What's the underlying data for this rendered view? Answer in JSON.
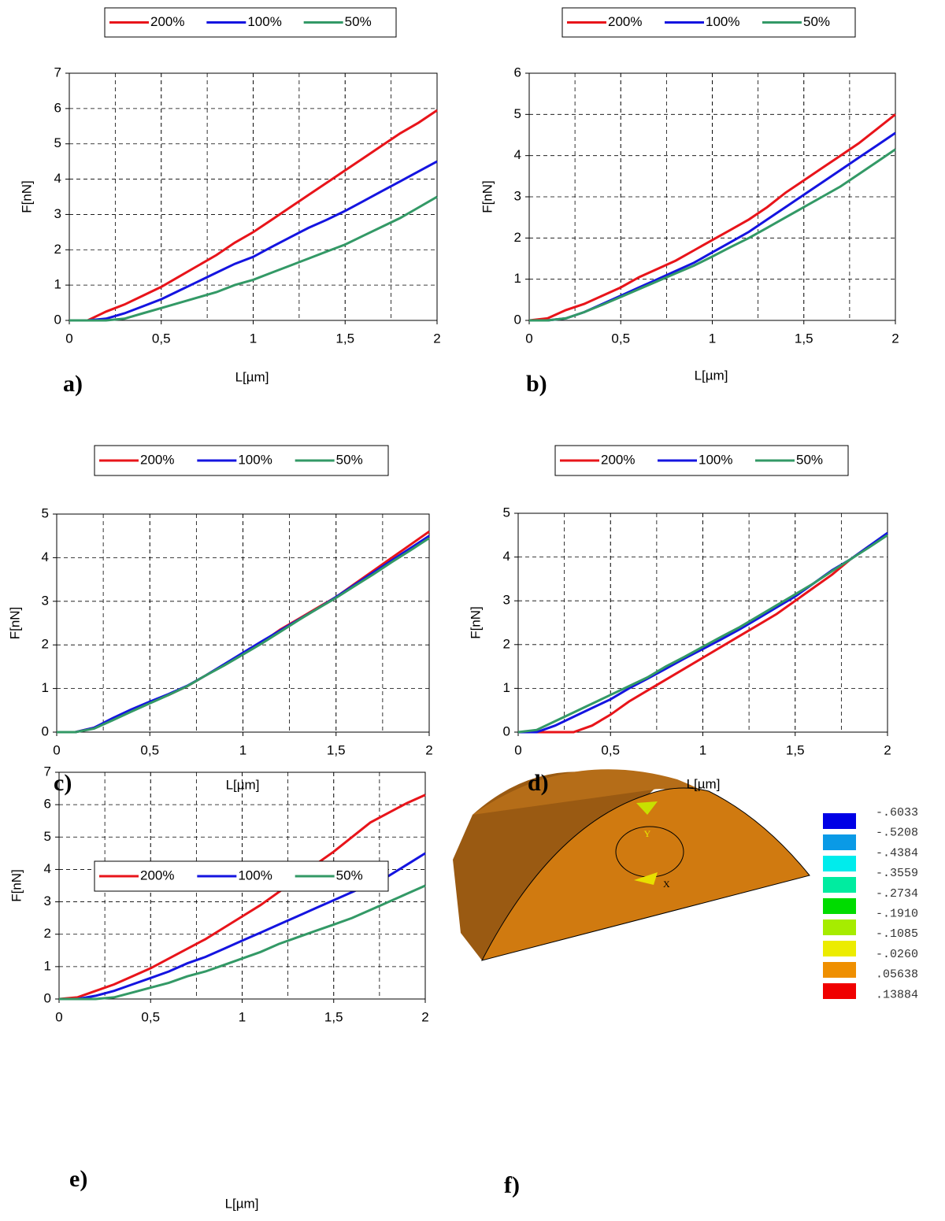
{
  "chart_data": [
    {
      "type": "line",
      "panel": "a)",
      "x_label": "L[µm]",
      "y_label": "F[nN]",
      "x": [
        0,
        0.1,
        0.2,
        0.3,
        0.4,
        0.5,
        0.6,
        0.7,
        0.8,
        0.9,
        1.0,
        1.1,
        1.2,
        1.3,
        1.4,
        1.5,
        1.6,
        1.7,
        1.8,
        1.9,
        2.0
      ],
      "series": [
        {
          "name": "200%",
          "color": "#e8141a",
          "values": [
            0,
            0,
            0.25,
            0.45,
            0.7,
            0.95,
            1.25,
            1.55,
            1.85,
            2.2,
            2.5,
            2.85,
            3.2,
            3.55,
            3.9,
            4.25,
            4.6,
            4.95,
            5.3,
            5.6,
            5.95
          ]
        },
        {
          "name": "100%",
          "color": "#1414e0",
          "values": [
            0,
            0,
            0.05,
            0.2,
            0.4,
            0.6,
            0.85,
            1.1,
            1.35,
            1.6,
            1.8,
            2.08,
            2.35,
            2.62,
            2.85,
            3.1,
            3.38,
            3.66,
            3.94,
            4.22,
            4.5
          ]
        },
        {
          "name": "50%",
          "color": "#339966",
          "values": [
            0,
            0,
            0,
            0.05,
            0.2,
            0.35,
            0.5,
            0.65,
            0.8,
            1.0,
            1.15,
            1.35,
            1.55,
            1.75,
            1.95,
            2.15,
            2.4,
            2.65,
            2.9,
            3.2,
            3.5
          ]
        }
      ],
      "xlim": [
        0,
        2
      ],
      "ylim": [
        0,
        7
      ],
      "xticks": [
        0,
        {
          "value": 0.5,
          "label": "0,5"
        },
        1,
        {
          "value": 1.5,
          "label": "1,5"
        },
        2
      ],
      "yticks": [
        0,
        1,
        2,
        3,
        4,
        5,
        6,
        7
      ],
      "grid": true
    },
    {
      "type": "line",
      "panel": "b)",
      "x_label": "L[µm]",
      "y_label": "F[nN]",
      "x": [
        0,
        0.1,
        0.2,
        0.3,
        0.4,
        0.5,
        0.6,
        0.7,
        0.8,
        0.9,
        1.0,
        1.1,
        1.2,
        1.3,
        1.4,
        1.5,
        1.6,
        1.7,
        1.8,
        1.9,
        2.0
      ],
      "series": [
        {
          "name": "200%",
          "color": "#e8141a",
          "values": [
            0,
            0.05,
            0.25,
            0.4,
            0.6,
            0.8,
            1.05,
            1.25,
            1.45,
            1.7,
            1.95,
            2.2,
            2.45,
            2.75,
            3.1,
            3.4,
            3.7,
            4.0,
            4.3,
            4.65,
            5.0
          ]
        },
        {
          "name": "100%",
          "color": "#1414e0",
          "values": [
            0,
            0,
            0.05,
            0.2,
            0.4,
            0.6,
            0.8,
            1.0,
            1.2,
            1.4,
            1.65,
            1.9,
            2.15,
            2.45,
            2.75,
            3.05,
            3.35,
            3.65,
            3.95,
            4.25,
            4.55
          ]
        },
        {
          "name": "50%",
          "color": "#339966",
          "values": [
            0,
            0,
            0.05,
            0.2,
            0.38,
            0.57,
            0.76,
            0.95,
            1.14,
            1.33,
            1.55,
            1.78,
            2.0,
            2.25,
            2.5,
            2.75,
            3.0,
            3.25,
            3.55,
            3.85,
            4.15
          ]
        }
      ],
      "xlim": [
        0,
        2
      ],
      "ylim": [
        0,
        6
      ],
      "xticks": [
        0,
        {
          "value": 0.5,
          "label": "0,5"
        },
        1,
        {
          "value": 1.5,
          "label": "1,5"
        },
        2
      ],
      "yticks": [
        0,
        1,
        2,
        3,
        4,
        5,
        6
      ],
      "grid": true
    },
    {
      "type": "line",
      "panel": "c)",
      "x_label": "L[µm]",
      "y_label": "F[nN]",
      "x": [
        0,
        0.1,
        0.2,
        0.3,
        0.4,
        0.5,
        0.6,
        0.7,
        0.8,
        0.9,
        1.0,
        1.1,
        1.2,
        1.3,
        1.4,
        1.5,
        1.6,
        1.7,
        1.8,
        1.9,
        2.0
      ],
      "series": [
        {
          "name": "200%",
          "color": "#e8141a",
          "values": [
            0,
            0,
            0.1,
            0.3,
            0.5,
            0.68,
            0.85,
            1.05,
            1.3,
            1.55,
            1.8,
            2.05,
            2.35,
            2.6,
            2.85,
            3.1,
            3.4,
            3.7,
            4.0,
            4.3,
            4.6
          ]
        },
        {
          "name": "100%",
          "color": "#1414e0",
          "values": [
            0,
            0,
            0.1,
            0.32,
            0.52,
            0.7,
            0.87,
            1.06,
            1.3,
            1.56,
            1.82,
            2.08,
            2.33,
            2.58,
            2.83,
            3.1,
            3.38,
            3.66,
            3.94,
            4.22,
            4.5
          ]
        },
        {
          "name": "50%",
          "color": "#339966",
          "values": [
            0,
            0,
            0.08,
            0.27,
            0.47,
            0.66,
            0.85,
            1.05,
            1.3,
            1.53,
            1.78,
            2.03,
            2.3,
            2.57,
            2.83,
            3.08,
            3.35,
            3.62,
            3.9,
            4.17,
            4.45
          ]
        }
      ],
      "xlim": [
        0,
        2
      ],
      "ylim": [
        0,
        5
      ],
      "xticks": [
        0,
        {
          "value": 0.5,
          "label": "0,5"
        },
        1,
        {
          "value": 1.5,
          "label": "1,5"
        },
        2
      ],
      "yticks": [
        0,
        1,
        2,
        3,
        4,
        5
      ],
      "grid": true
    },
    {
      "type": "line",
      "panel": "d)",
      "x_label": "L[µm]",
      "y_label": "F[nN]",
      "x": [
        0,
        0.1,
        0.2,
        0.3,
        0.4,
        0.5,
        0.6,
        0.7,
        0.8,
        0.9,
        1.0,
        1.1,
        1.2,
        1.3,
        1.4,
        1.5,
        1.6,
        1.7,
        1.8,
        1.9,
        2.0
      ],
      "series": [
        {
          "name": "200%",
          "color": "#e8141a",
          "values": [
            0,
            0,
            0,
            0,
            0.15,
            0.4,
            0.7,
            0.95,
            1.2,
            1.45,
            1.7,
            1.95,
            2.2,
            2.45,
            2.7,
            3.0,
            3.3,
            3.6,
            3.95,
            4.25,
            4.5
          ]
        },
        {
          "name": "100%",
          "color": "#1414e0",
          "values": [
            0,
            0,
            0.15,
            0.35,
            0.55,
            0.75,
            1.0,
            1.22,
            1.45,
            1.68,
            1.9,
            2.12,
            2.35,
            2.6,
            2.85,
            3.1,
            3.4,
            3.7,
            3.95,
            4.25,
            4.55
          ]
        },
        {
          "name": "50%",
          "color": "#339966",
          "values": [
            0,
            0.05,
            0.25,
            0.45,
            0.65,
            0.85,
            1.05,
            1.25,
            1.5,
            1.72,
            1.95,
            2.18,
            2.4,
            2.65,
            2.9,
            3.15,
            3.4,
            3.68,
            3.95,
            4.22,
            4.5
          ]
        }
      ],
      "xlim": [
        0,
        2
      ],
      "ylim": [
        0,
        5
      ],
      "xticks": [
        0,
        {
          "value": 0.5,
          "label": "0,5"
        },
        1,
        {
          "value": 1.5,
          "label": "1,5"
        },
        2
      ],
      "yticks": [
        0,
        1,
        2,
        3,
        4,
        5
      ],
      "grid": true
    },
    {
      "type": "line",
      "panel": "e)",
      "x_label": "L[µm]",
      "y_label": "F[nN]",
      "x": [
        0,
        0.1,
        0.2,
        0.3,
        0.4,
        0.5,
        0.6,
        0.7,
        0.8,
        0.9,
        1.0,
        1.1,
        1.2,
        1.3,
        1.4,
        1.5,
        1.6,
        1.7,
        1.8,
        1.9,
        2.0
      ],
      "series": [
        {
          "name": "200%",
          "color": "#e8141a",
          "values": [
            0,
            0.05,
            0.25,
            0.45,
            0.7,
            0.95,
            1.25,
            1.55,
            1.85,
            2.2,
            2.55,
            2.9,
            3.3,
            3.7,
            4.15,
            4.55,
            5.0,
            5.45,
            5.75,
            6.05,
            6.3
          ]
        },
        {
          "name": "100%",
          "color": "#1414e0",
          "values": [
            0,
            0,
            0.1,
            0.25,
            0.45,
            0.65,
            0.85,
            1.1,
            1.3,
            1.55,
            1.8,
            2.05,
            2.3,
            2.55,
            2.8,
            3.05,
            3.3,
            3.55,
            3.8,
            4.15,
            4.5
          ]
        },
        {
          "name": "50%",
          "color": "#339966",
          "values": [
            0,
            0,
            0,
            0.05,
            0.2,
            0.35,
            0.5,
            0.7,
            0.85,
            1.05,
            1.25,
            1.45,
            1.7,
            1.9,
            2.1,
            2.3,
            2.5,
            2.75,
            3.0,
            3.25,
            3.5
          ]
        }
      ],
      "xlim": [
        0,
        2
      ],
      "ylim": [
        0,
        7
      ],
      "xticks": [
        0,
        {
          "value": 0.5,
          "label": "0,5"
        },
        1,
        {
          "value": 1.5,
          "label": "1,5"
        },
        2
      ],
      "yticks": [
        0,
        1,
        2,
        3,
        4,
        5,
        6,
        7
      ],
      "grid": true
    }
  ],
  "figure_f": {
    "panel": "f)",
    "axis_x": "X",
    "axis_y": "Y",
    "colors": [
      "#0000e6",
      "#0a9ae6",
      "#00ecec",
      "#00eca0",
      "#00dc00",
      "#a6ec00",
      "#ecec00",
      "#ef8f00",
      "#f00000"
    ],
    "labels": [
      "-.6033",
      "-.5208",
      "-.4384",
      "-.3559",
      "-.2734",
      "-.1910",
      "-.1085",
      "-.0260",
      ".05638",
      ".13884"
    ]
  }
}
